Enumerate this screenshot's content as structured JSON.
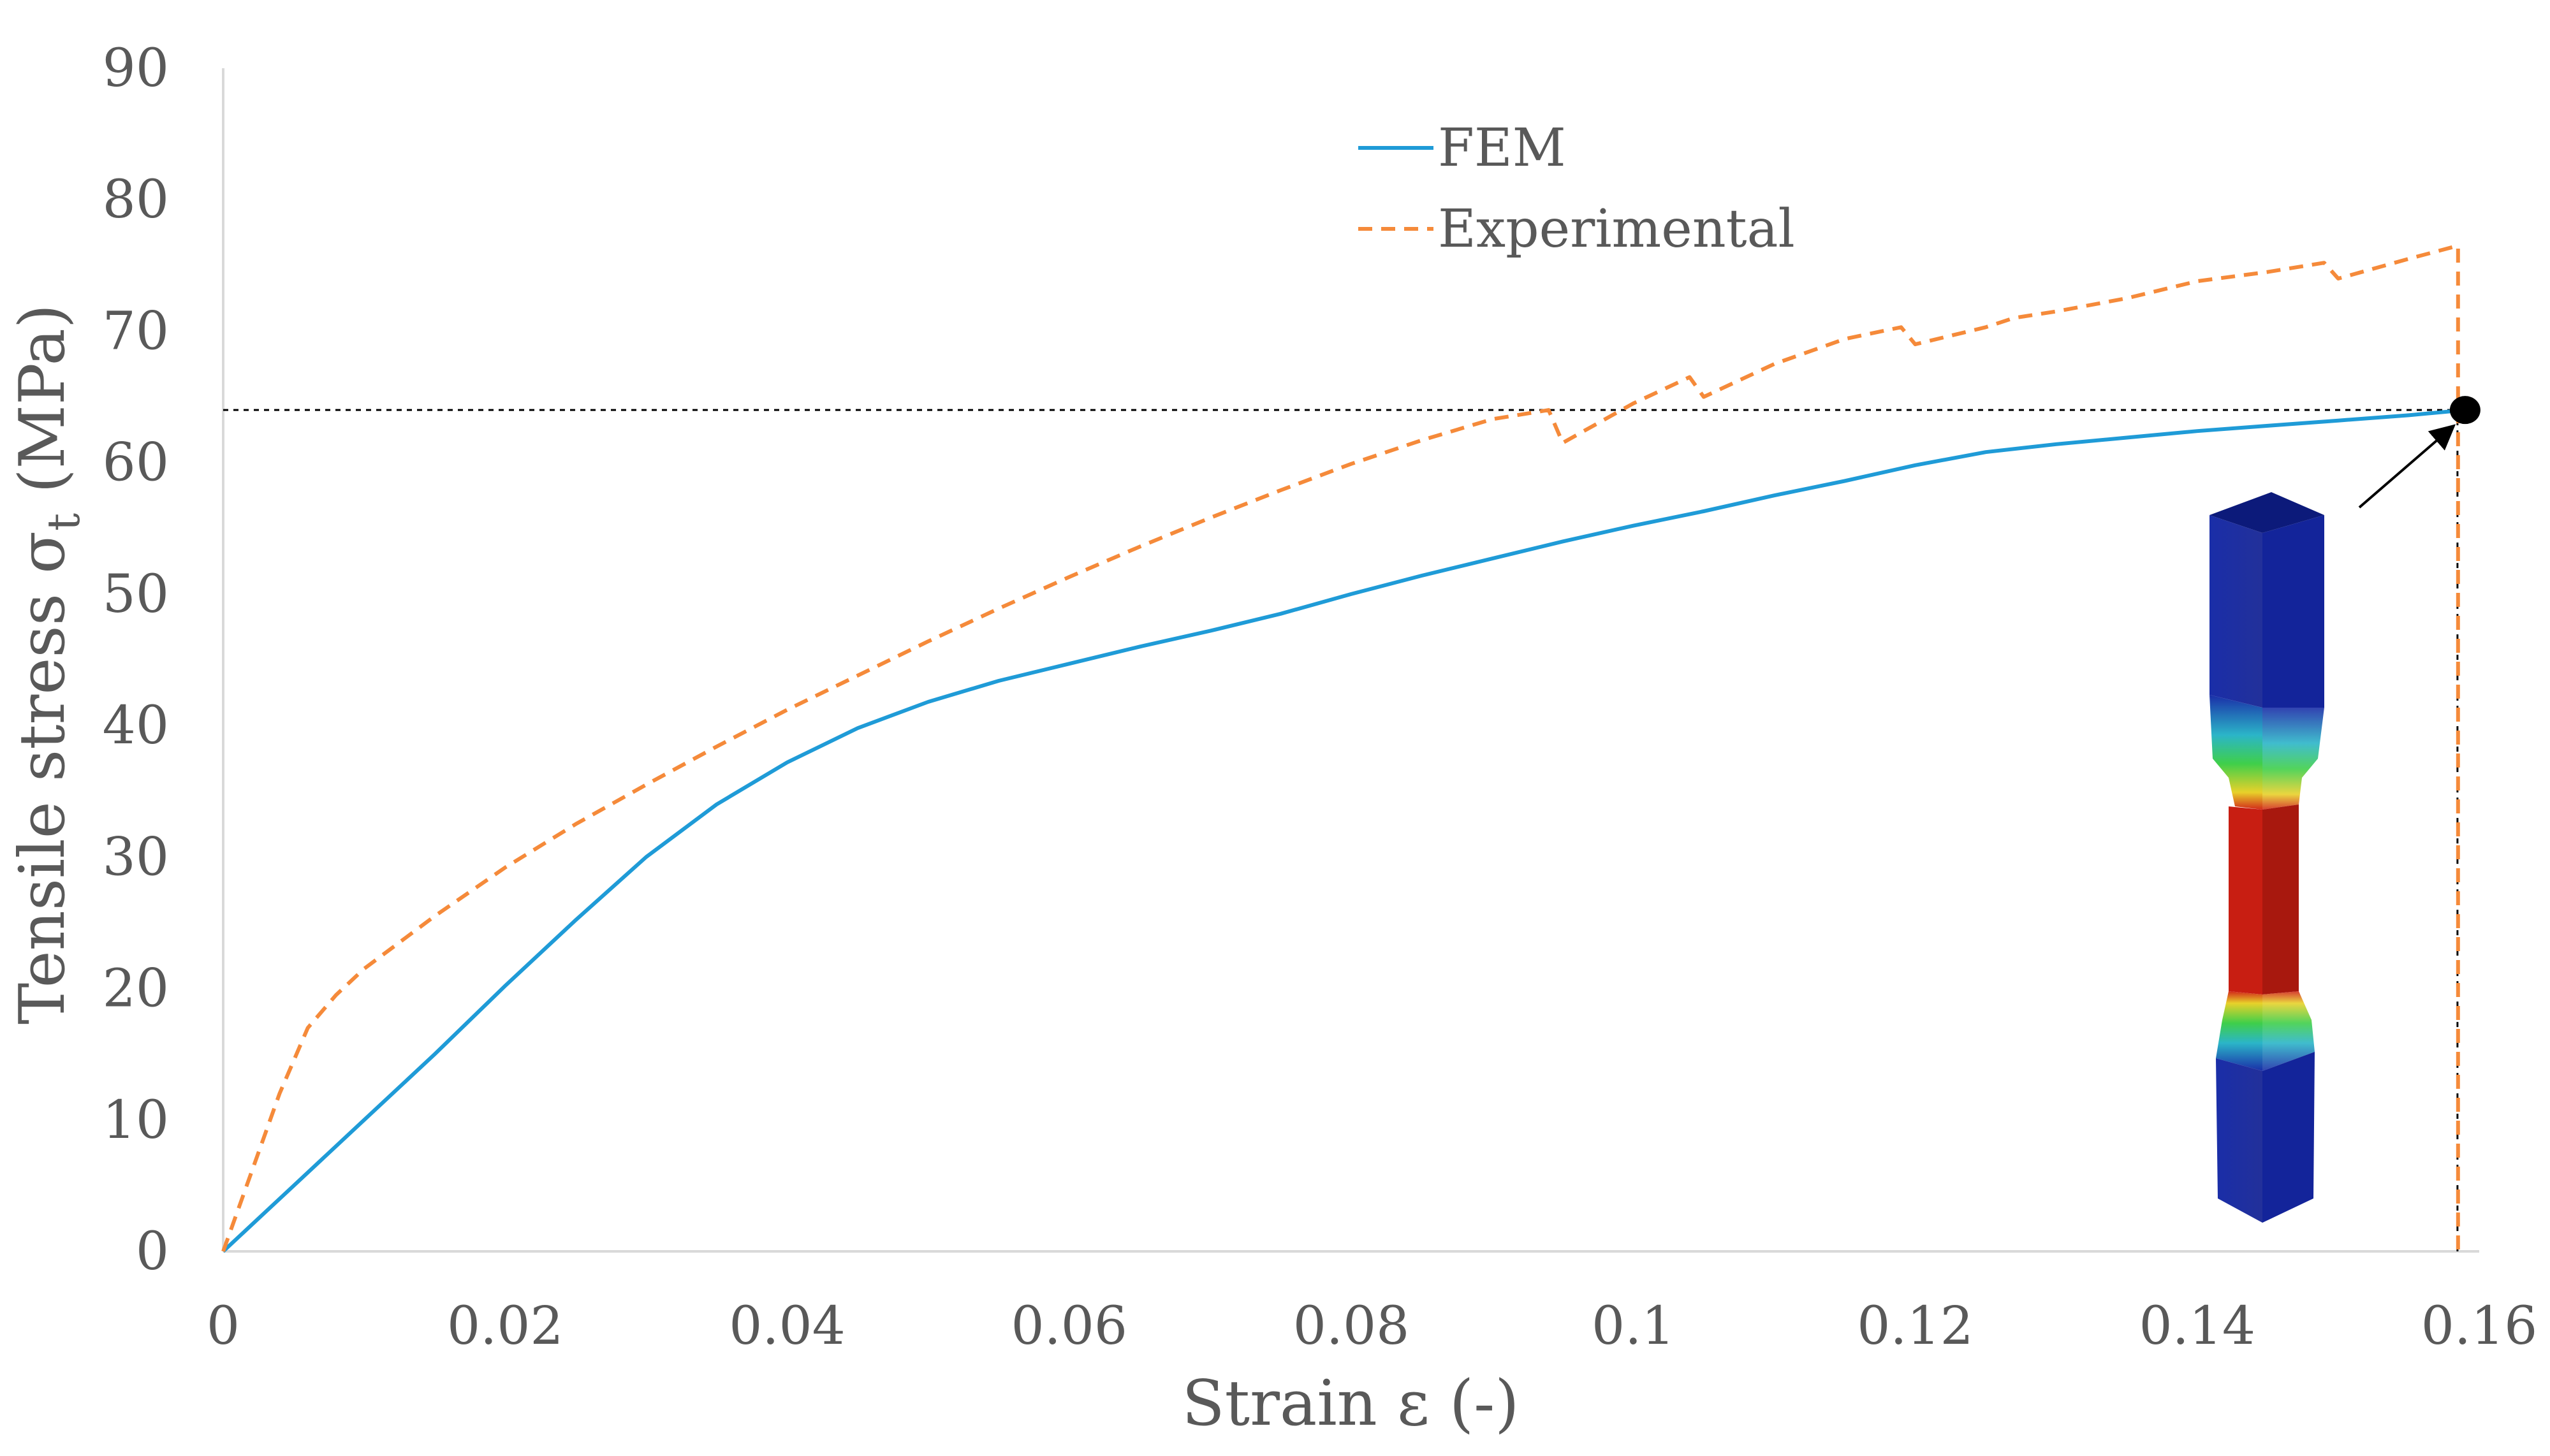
{
  "chart_data": {
    "type": "line",
    "title": "",
    "xlabel": "Strain ε (-)",
    "ylabel_main": "Tensile stress σ",
    "ylabel_sub": "t",
    "ylabel_suffix": " (MPa)",
    "xlim": [
      0,
      0.16
    ],
    "ylim": [
      0,
      90
    ],
    "xticks": [
      0,
      0.02,
      0.04,
      0.06,
      0.08,
      0.1,
      0.12,
      0.14,
      0.16
    ],
    "xtick_labels": [
      "0",
      "0.02",
      "0.04",
      "0.06",
      "0.08",
      "0.1",
      "0.12",
      "0.14",
      "0.16"
    ],
    "yticks": [
      0,
      10,
      20,
      30,
      40,
      50,
      60,
      70,
      80,
      90
    ],
    "ytick_labels": [
      "0",
      "10",
      "20",
      "30",
      "40",
      "50",
      "60",
      "70",
      "80",
      "90"
    ],
    "grid": false,
    "legend_position": "top-center",
    "series": [
      {
        "name": "FEM",
        "color": "#1f9bd7",
        "style": "solid",
        "x": [
          0,
          0.005,
          0.01,
          0.015,
          0.02,
          0.025,
          0.03,
          0.035,
          0.04,
          0.045,
          0.05,
          0.055,
          0.06,
          0.065,
          0.07,
          0.075,
          0.08,
          0.085,
          0.09,
          0.095,
          0.1,
          0.105,
          0.11,
          0.115,
          0.12,
          0.125,
          0.13,
          0.135,
          0.14,
          0.145,
          0.15,
          0.155,
          0.159
        ],
        "values": [
          0,
          5,
          10,
          15,
          20.2,
          25.2,
          30,
          34,
          37.2,
          39.8,
          41.8,
          43.4,
          44.7,
          46,
          47.2,
          48.5,
          50,
          51.4,
          52.7,
          54,
          55.2,
          56.3,
          57.5,
          58.6,
          59.8,
          60.8,
          61.4,
          61.9,
          62.4,
          62.8,
          63.2,
          63.6,
          64
        ]
      },
      {
        "name": "Experimental",
        "color": "#f58a3a",
        "style": "dashed",
        "x": [
          0,
          0.002,
          0.004,
          0.006,
          0.008,
          0.01,
          0.015,
          0.02,
          0.025,
          0.03,
          0.035,
          0.04,
          0.045,
          0.05,
          0.055,
          0.06,
          0.065,
          0.07,
          0.075,
          0.08,
          0.085,
          0.09,
          0.094,
          0.095,
          0.1,
          0.104,
          0.105,
          0.11,
          0.115,
          0.119,
          0.12,
          0.125,
          0.127,
          0.13,
          0.135,
          0.14,
          0.145,
          0.149,
          0.15,
          0.155,
          0.1585,
          0.1585
        ],
        "values": [
          0,
          6,
          12,
          17,
          19.5,
          21.5,
          25.5,
          29.2,
          32.5,
          35.5,
          38.4,
          41.2,
          43.8,
          46.4,
          48.9,
          51.3,
          53.6,
          55.8,
          57.9,
          59.9,
          61.7,
          63.3,
          64,
          61.5,
          64.5,
          66.5,
          65,
          67.5,
          69.4,
          70.3,
          69,
          70.3,
          71,
          71.5,
          72.5,
          73.8,
          74.5,
          75.2,
          74,
          75.5,
          76.5,
          0
        ]
      }
    ],
    "annotations": {
      "failure_point": {
        "x": 0.159,
        "y": 64
      },
      "inset_description": "FEM tensile specimen contour plot"
    }
  }
}
